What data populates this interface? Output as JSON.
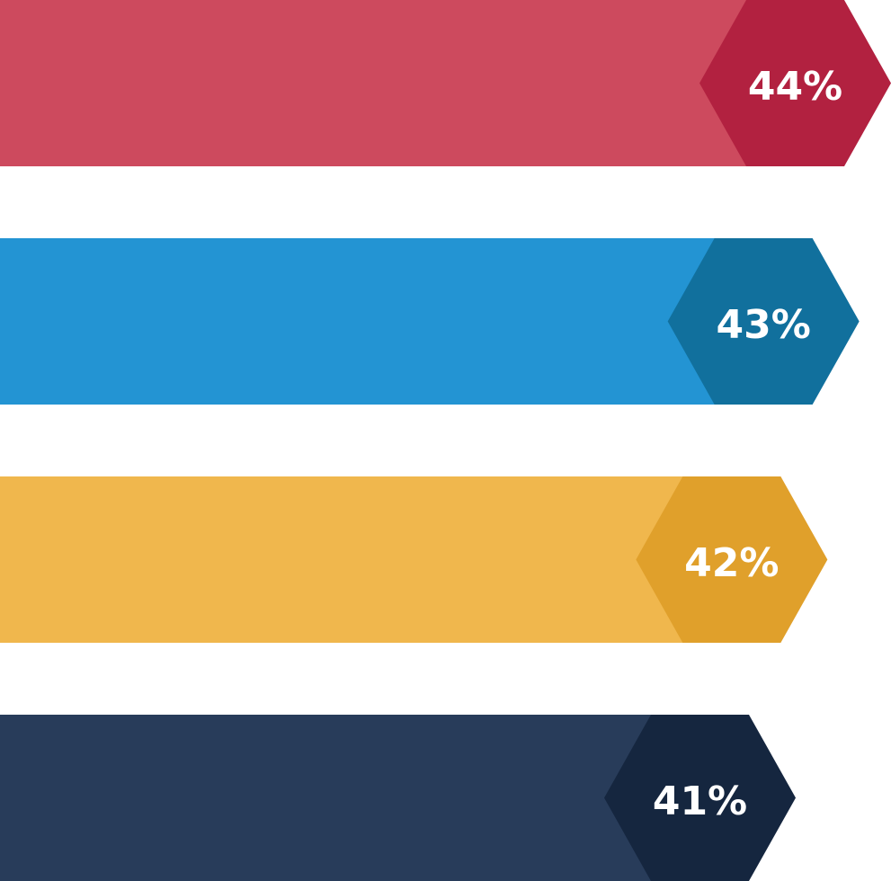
{
  "chart_data": {
    "type": "bar",
    "orientation": "horizontal",
    "values": [
      44,
      43,
      42,
      41
    ],
    "value_labels": [
      "44%",
      "43%",
      "42%",
      "41%"
    ],
    "colors": [
      "#cd4a5e",
      "#2394d3",
      "#f0b74d",
      "#283c5a"
    ],
    "label_colors": [
      "#b22140",
      "#11709d",
      "#e0a02b",
      "#15263f"
    ]
  }
}
